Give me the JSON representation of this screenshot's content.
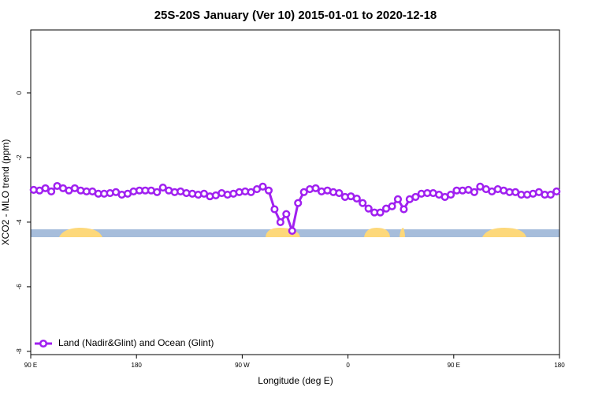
{
  "chart_data": {
    "type": "line",
    "title": "25S-20S January (Ver 10)   2015-01-01 to 2020-12-18",
    "x_label": "Longitude (deg E)",
    "y_label": "XCO2 - MLO trend (ppm)",
    "xlim": [
      90,
      540
    ],
    "ylim": [
      -8.1,
      1.95
    ],
    "xticks": [
      {
        "value": 90,
        "label": "90 E"
      },
      {
        "value": 180,
        "label": "180"
      },
      {
        "value": 270,
        "label": "90 W"
      },
      {
        "value": 360,
        "label": "0"
      },
      {
        "value": 450,
        "label": "90 E"
      },
      {
        "value": 540,
        "label": "180"
      }
    ],
    "yticks": [
      0,
      -2,
      -4,
      -6,
      -8
    ],
    "legend": "bottom-left",
    "series": [
      {
        "name": "Land (Nadir&Glint) and Ocean (Glint)",
        "color": "#a020f0",
        "x": [
          92.5,
          97.5,
          102.5,
          107.5,
          112.5,
          117.5,
          122.5,
          127.5,
          132.5,
          137.5,
          142.5,
          147.5,
          152.5,
          157.5,
          162.5,
          167.5,
          172.5,
          177.5,
          182.5,
          187.5,
          192.5,
          197.5,
          202.5,
          207.5,
          212.5,
          217.5,
          222.5,
          227.5,
          232.5,
          237.5,
          242.5,
          247.5,
          252.5,
          257.5,
          262.5,
          267.5,
          272.5,
          277.5,
          282.5,
          287.5,
          292.5,
          297.5,
          302.5,
          307.5,
          312.5,
          317.5,
          322.5,
          327.5,
          332.5,
          337.5,
          342.5,
          347.5,
          352.5,
          357.5,
          362.5,
          367.5,
          372.5,
          377.5,
          382.5,
          387.5,
          392.5,
          397.5,
          402.5,
          407.5,
          412.5,
          417.5,
          422.5,
          427.5,
          432.5,
          437.5,
          442.5,
          447.5,
          452.5,
          457.5,
          462.5,
          467.5,
          472.5,
          477.5,
          482.5,
          487.5,
          492.5,
          497.5,
          502.5,
          507.5,
          512.5,
          517.5,
          522.5,
          527.5,
          532.5,
          537.5
        ],
        "values": [
          -3.0,
          -3.02,
          -2.95,
          -3.05,
          -2.88,
          -2.95,
          -3.02,
          -2.95,
          -3.02,
          -3.05,
          -3.05,
          -3.12,
          -3.12,
          -3.1,
          -3.07,
          -3.15,
          -3.12,
          -3.05,
          -3.02,
          -3.02,
          -3.02,
          -3.07,
          -2.93,
          -3.02,
          -3.07,
          -3.05,
          -3.1,
          -3.12,
          -3.15,
          -3.12,
          -3.2,
          -3.17,
          -3.1,
          -3.15,
          -3.12,
          -3.07,
          -3.05,
          -3.07,
          -2.98,
          -2.9,
          -3.02,
          -3.6,
          -4.0,
          -3.75,
          -4.27,
          -3.41,
          -3.07,
          -2.98,
          -2.95,
          -3.05,
          -3.02,
          -3.07,
          -3.1,
          -3.22,
          -3.2,
          -3.27,
          -3.41,
          -3.58,
          -3.7,
          -3.7,
          -3.58,
          -3.51,
          -3.29,
          -3.6,
          -3.29,
          -3.22,
          -3.12,
          -3.1,
          -3.1,
          -3.15,
          -3.22,
          -3.15,
          -3.02,
          -3.02,
          -3.0,
          -3.07,
          -2.9,
          -2.98,
          -3.05,
          -2.98,
          -3.02,
          -3.07,
          -3.07,
          -3.15,
          -3.15,
          -3.12,
          -3.07,
          -3.15,
          -3.15,
          -3.05
        ]
      }
    ]
  }
}
